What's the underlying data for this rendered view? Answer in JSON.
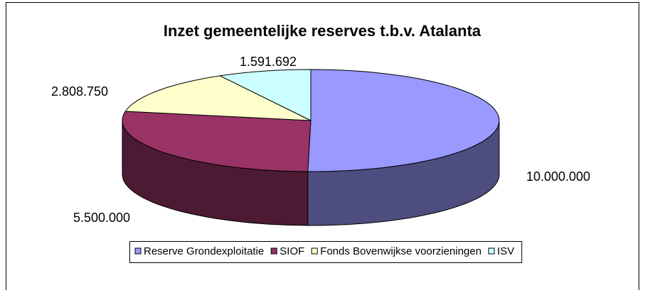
{
  "chart_data": {
    "type": "pie3d",
    "title": "Inzet gemeentelijke reserves t.b.v. Atalanta",
    "categories": [
      "Reserve Grondexploitatie",
      "SIOF",
      "Fonds Bovenwijkse voorzieningen",
      "ISV"
    ],
    "values": [
      10000000,
      5500000,
      2808750,
      1591692
    ],
    "value_labels": [
      "10.000.000",
      "5.500.000",
      "2.808.750",
      "1.591.692"
    ],
    "colors": [
      "#9999ff",
      "#993366",
      "#ffffcc",
      "#ccffff"
    ],
    "legend": "bottom"
  }
}
